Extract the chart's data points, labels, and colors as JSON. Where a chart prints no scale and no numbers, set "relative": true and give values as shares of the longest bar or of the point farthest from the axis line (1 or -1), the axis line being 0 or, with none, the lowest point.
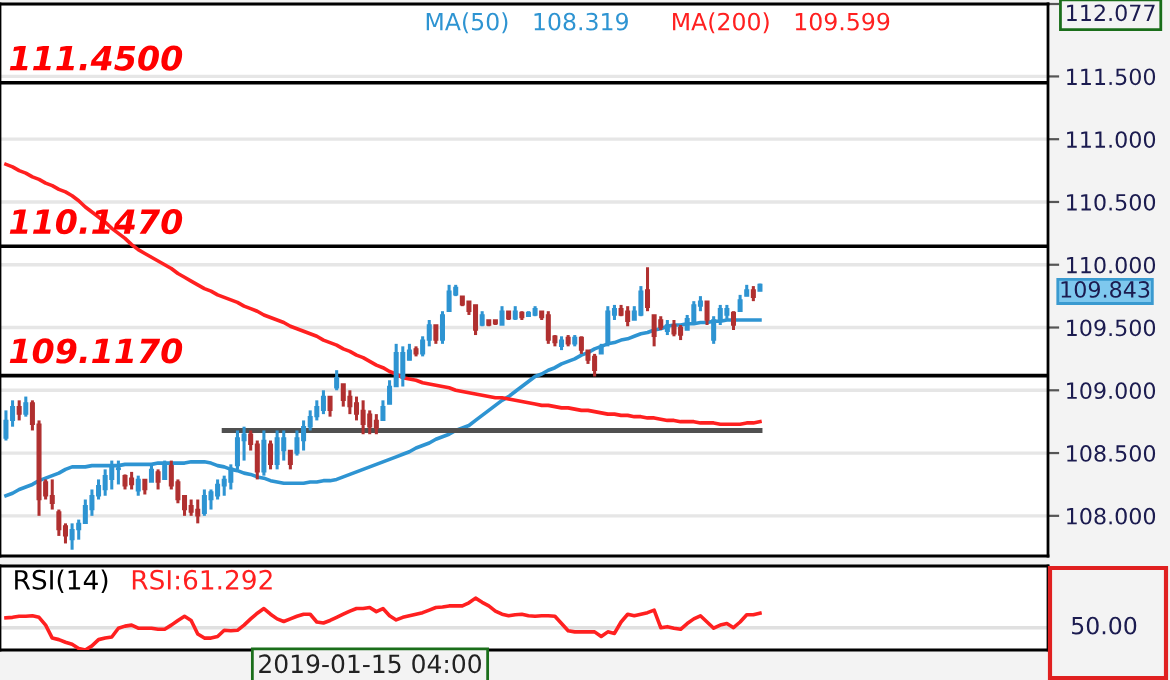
{
  "chart_data": [
    {
      "type": "candlestick",
      "categories": [
        null,
        null,
        null,
        null,
        null,
        null,
        null,
        null,
        null,
        null,
        null,
        null,
        null,
        null,
        null,
        null,
        null,
        null,
        null,
        null,
        null,
        null,
        null,
        null,
        null,
        null,
        null,
        null,
        null,
        null,
        null,
        null,
        null,
        null,
        null,
        null,
        null,
        null,
        null,
        null,
        null,
        null,
        null,
        null,
        null,
        null,
        null,
        null,
        null,
        null,
        null,
        null,
        null,
        null,
        null,
        null,
        null,
        null,
        null,
        null,
        null,
        null,
        null,
        null,
        null,
        null,
        null,
        null,
        null,
        null,
        null,
        null,
        null,
        null,
        null,
        null,
        null,
        null,
        null,
        null,
        null,
        null,
        null,
        null,
        null,
        null,
        null,
        null,
        null,
        null,
        null,
        null,
        null,
        null,
        null,
        null,
        null,
        null,
        null,
        null,
        null,
        null,
        null,
        null,
        null,
        null,
        null,
        null,
        null,
        null,
        null,
        null,
        null,
        null,
        null
      ],
      "colors": [
        "#2e94d2",
        "#2e94d2",
        "#b03030",
        "#2e94d2",
        "#b03030",
        "#b03030",
        "#b03030",
        "#b03030",
        "#b03030",
        "#b03030",
        "#2e94d2",
        "#2e94d2",
        "#2e94d2",
        "#2e94d2",
        "#2e94d2",
        "#2e94d2",
        "#2e94d2",
        "#2e94d2",
        "#b03030",
        "#b03030",
        "#2e94d2",
        "#b03030",
        "#2e94d2",
        "#b03030",
        "#2e94d2",
        "#b03030",
        "#b03030",
        "#b03030",
        "#b03030",
        "#b03030",
        "#2e94d2",
        "#2e94d2",
        "#2e94d2",
        "#2e94d2",
        "#2e94d2",
        "#2e94d2",
        "#2e94d2",
        "#b03030",
        "#b03030",
        "#2e94d2",
        "#b03030",
        "#2e94d2",
        "#2e94d2",
        "#b03030",
        "#2e94d2",
        "#2e94d2",
        "#2e94d2",
        "#2e94d2",
        "#2e94d2",
        "#b03030",
        "#2e94d2",
        "#b03030",
        "#b03030",
        "#b03030",
        "#b03030",
        "#b03030",
        "#b03030",
        "#2e94d2",
        "#2e94d2",
        "#2e94d2",
        "#2e94d2",
        "#2e94d2",
        "#b03030",
        "#2e94d2",
        "#2e94d2",
        "#b03030",
        "#2e94d2",
        "#2e94d2",
        "#2e94d2",
        "#b03030",
        "#b03030",
        "#b03030",
        "#2e94d2",
        "#b03030",
        "#b03030",
        "#2e94d2",
        "#b03030",
        "#2e94d2",
        "#b03030",
        "#2e94d2",
        "#2e94d2",
        "#b03030",
        "#b03030",
        "#b03030",
        "#2e94d2",
        "#b03030",
        "#2e94d2",
        "#b03030",
        "#b03030",
        "#b03030",
        "#2e94d2",
        "#2e94d2",
        "#2e94d2",
        "#b03030",
        "#b03030",
        "#2e94d2",
        "#2e94d2",
        "#b03030",
        "#b03030",
        "#b03030",
        "#2e94d2",
        "#b03030",
        "#b03030",
        "#2e94d2",
        "#2e94d2",
        "#2e94d2",
        "#b03030",
        "#2e94d2",
        "#2e94d2",
        "#2e94d2",
        "#b03030",
        "#2e94d2",
        "#2e94d2",
        "#b03030",
        "#2e94d2"
      ],
      "ohlc": [
        [
          108.62,
          108.84,
          108.6,
          108.76
        ],
        [
          108.76,
          108.92,
          108.71,
          108.87
        ],
        [
          108.87,
          108.92,
          108.76,
          108.81
        ],
        [
          108.81,
          108.95,
          108.79,
          108.9
        ],
        [
          108.9,
          108.92,
          108.68,
          108.73
        ],
        [
          108.73,
          108.76,
          108.0,
          108.13
        ],
        [
          108.27,
          108.29,
          108.13,
          108.16
        ],
        [
          108.16,
          108.29,
          108.05,
          108.1
        ],
        [
          108.03,
          108.05,
          107.84,
          107.89
        ],
        [
          107.92,
          107.94,
          107.78,
          107.84
        ],
        [
          107.81,
          107.94,
          107.73,
          107.89
        ],
        [
          107.89,
          107.97,
          107.81,
          107.94
        ],
        [
          107.94,
          108.13,
          107.94,
          108.08
        ],
        [
          108.05,
          108.21,
          108.0,
          108.16
        ],
        [
          108.16,
          108.29,
          108.13,
          108.24
        ],
        [
          108.21,
          108.37,
          108.16,
          108.32
        ],
        [
          108.29,
          108.44,
          108.21,
          108.4
        ],
        [
          108.37,
          108.44,
          108.25,
          108.38
        ],
        [
          108.32,
          108.33,
          108.21,
          108.24
        ],
        [
          108.3,
          108.35,
          108.21,
          108.25
        ],
        [
          108.2,
          108.32,
          108.16,
          108.29
        ],
        [
          108.29,
          108.29,
          108.17,
          108.21
        ],
        [
          108.27,
          108.41,
          108.27,
          108.37
        ],
        [
          108.35,
          108.37,
          108.21,
          108.27
        ],
        [
          108.29,
          108.44,
          108.29,
          108.4
        ],
        [
          108.4,
          108.44,
          108.21,
          108.24
        ],
        [
          108.27,
          108.29,
          108.1,
          108.13
        ],
        [
          108.16,
          108.16,
          108.0,
          108.05
        ],
        [
          108.08,
          108.13,
          108.0,
          108.03
        ],
        [
          108.05,
          108.13,
          107.94,
          108.0
        ],
        [
          108.02,
          108.21,
          108.0,
          108.16
        ],
        [
          108.13,
          108.21,
          108.05,
          108.19
        ],
        [
          108.16,
          108.29,
          108.13,
          108.25
        ],
        [
          108.24,
          108.32,
          108.16,
          108.29
        ],
        [
          108.27,
          108.41,
          108.21,
          108.38
        ],
        [
          108.4,
          108.68,
          108.37,
          108.62
        ],
        [
          108.6,
          108.71,
          108.44,
          108.65
        ],
        [
          108.65,
          108.68,
          108.52,
          108.57
        ],
        [
          108.57,
          108.6,
          108.29,
          108.35
        ],
        [
          108.35,
          108.68,
          108.32,
          108.6
        ],
        [
          108.57,
          108.6,
          108.37,
          108.41
        ],
        [
          108.41,
          108.68,
          108.37,
          108.62
        ],
        [
          108.52,
          108.68,
          108.44,
          108.62
        ],
        [
          108.52,
          108.52,
          108.37,
          108.41
        ],
        [
          108.5,
          108.68,
          108.48,
          108.62
        ],
        [
          108.6,
          108.76,
          108.52,
          108.71
        ],
        [
          108.71,
          108.84,
          108.68,
          108.79
        ],
        [
          108.79,
          108.92,
          108.76,
          108.87
        ],
        [
          108.84,
          109.0,
          108.81,
          108.95
        ],
        [
          108.95,
          108.95,
          108.79,
          108.84
        ],
        [
          109.02,
          109.16,
          109.0,
          109.1
        ],
        [
          109.05,
          109.05,
          108.87,
          108.92
        ],
        [
          108.95,
          109.0,
          108.81,
          108.87
        ],
        [
          108.9,
          108.95,
          108.76,
          108.81
        ],
        [
          108.84,
          108.92,
          108.65,
          108.73
        ],
        [
          108.81,
          108.84,
          108.65,
          108.71
        ],
        [
          108.76,
          108.81,
          108.65,
          108.7
        ],
        [
          108.76,
          108.92,
          108.76,
          108.87
        ],
        [
          108.89,
          109.08,
          108.89,
          109.03
        ],
        [
          109.03,
          109.37,
          109.03,
          109.3
        ],
        [
          109.1,
          109.35,
          109.03,
          109.3
        ],
        [
          109.24,
          109.37,
          109.24,
          109.32
        ],
        [
          109.33,
          109.35,
          109.27,
          109.29
        ],
        [
          109.29,
          109.43,
          109.27,
          109.4
        ],
        [
          109.4,
          109.56,
          109.35,
          109.52
        ],
        [
          109.52,
          109.52,
          109.37,
          109.4
        ],
        [
          109.4,
          109.63,
          109.37,
          109.6
        ],
        [
          109.63,
          109.84,
          109.63,
          109.79
        ],
        [
          109.76,
          109.84,
          109.75,
          109.82
        ],
        [
          109.75,
          109.75,
          109.67,
          109.68
        ],
        [
          109.71,
          109.71,
          109.6,
          109.63
        ],
        [
          109.68,
          109.68,
          109.44,
          109.48
        ],
        [
          109.52,
          109.63,
          109.51,
          109.6
        ],
        [
          109.56,
          109.56,
          109.51,
          109.52
        ],
        [
          109.56,
          109.56,
          109.52,
          109.53
        ],
        [
          109.52,
          109.67,
          109.52,
          109.63
        ],
        [
          109.63,
          109.63,
          109.56,
          109.57
        ],
        [
          109.57,
          109.67,
          109.56,
          109.63
        ],
        [
          109.62,
          109.63,
          109.56,
          109.58
        ],
        [
          109.59,
          109.63,
          109.59,
          109.62
        ],
        [
          109.6,
          109.67,
          109.59,
          109.65
        ],
        [
          109.63,
          109.63,
          109.56,
          109.58
        ],
        [
          109.6,
          109.63,
          109.37,
          109.4
        ],
        [
          109.43,
          109.44,
          109.35,
          109.38
        ],
        [
          109.35,
          109.43,
          109.32,
          109.4
        ],
        [
          109.42,
          109.44,
          109.35,
          109.37
        ],
        [
          109.37,
          109.44,
          109.35,
          109.42
        ],
        [
          109.42,
          109.43,
          109.29,
          109.32
        ],
        [
          109.32,
          109.32,
          109.21,
          109.24
        ],
        [
          109.27,
          109.29,
          109.11,
          109.16
        ],
        [
          109.29,
          109.37,
          109.29,
          109.35
        ],
        [
          109.37,
          109.67,
          109.35,
          109.63
        ],
        [
          109.6,
          109.68,
          109.56,
          109.65
        ],
        [
          109.65,
          109.68,
          109.59,
          109.6
        ],
        [
          109.63,
          109.67,
          109.51,
          109.55
        ],
        [
          109.56,
          109.67,
          109.56,
          109.63
        ],
        [
          109.6,
          109.83,
          109.59,
          109.79
        ],
        [
          109.8,
          109.98,
          109.63,
          109.66
        ],
        [
          109.6,
          109.6,
          109.35,
          109.43
        ],
        [
          109.56,
          109.59,
          109.48,
          109.5
        ],
        [
          109.47,
          109.56,
          109.44,
          109.52
        ],
        [
          109.52,
          109.56,
          109.43,
          109.45
        ],
        [
          109.5,
          109.52,
          109.4,
          109.44
        ],
        [
          109.48,
          109.6,
          109.48,
          109.57
        ],
        [
          109.55,
          109.71,
          109.52,
          109.68
        ],
        [
          109.67,
          109.75,
          109.63,
          109.71
        ],
        [
          109.71,
          109.71,
          109.52,
          109.56
        ],
        [
          109.4,
          109.59,
          109.37,
          109.56
        ],
        [
          109.55,
          109.68,
          109.52,
          109.65
        ],
        [
          109.6,
          109.68,
          109.56,
          109.65
        ],
        [
          109.62,
          109.63,
          109.48,
          109.52
        ],
        [
          109.63,
          109.76,
          109.63,
          109.72
        ],
        [
          109.75,
          109.84,
          109.75,
          109.8
        ],
        [
          109.8,
          109.83,
          109.71,
          109.74
        ],
        [
          109.79,
          109.85,
          109.79,
          109.843
        ]
      ],
      "series": [
        {
          "name": "MA(50)   108.319",
          "type": "line",
          "color": "#2e94d2",
          "values": [
            108.16,
            108.18,
            108.21,
            108.23,
            108.25,
            108.28,
            108.3,
            108.32,
            108.34,
            108.37,
            108.39,
            108.39,
            108.39,
            108.4,
            108.4,
            108.4,
            108.4,
            108.4,
            108.41,
            108.41,
            108.41,
            108.41,
            108.41,
            108.42,
            108.42,
            108.42,
            108.42,
            108.42,
            108.43,
            108.43,
            108.43,
            108.42,
            108.4,
            108.39,
            108.37,
            108.36,
            108.34,
            108.33,
            108.31,
            108.3,
            108.28,
            108.27,
            108.26,
            108.26,
            108.26,
            108.26,
            108.27,
            108.27,
            108.28,
            108.28,
            108.29,
            108.31,
            108.33,
            108.35,
            108.37,
            108.39,
            108.41,
            108.43,
            108.45,
            108.47,
            108.49,
            108.51,
            108.54,
            108.56,
            108.58,
            108.61,
            108.63,
            108.65,
            108.68,
            108.7,
            108.72,
            108.76,
            108.8,
            108.84,
            108.88,
            108.92,
            108.95,
            108.99,
            109.03,
            109.07,
            109.11,
            109.13,
            109.16,
            109.18,
            109.21,
            109.23,
            109.25,
            109.28,
            109.3,
            109.33,
            109.35,
            109.37,
            109.38,
            109.4,
            109.41,
            109.43,
            109.45,
            109.46,
            109.48,
            109.49,
            109.51,
            109.52,
            109.52,
            109.53,
            109.53,
            109.54,
            109.54,
            109.55,
            109.55,
            109.56,
            109.56,
            109.56,
            109.56,
            109.56,
            109.56
          ]
        },
        {
          "name": "MA(200)   109.599",
          "type": "line",
          "color": "#ff2020",
          "values": [
            110.8,
            110.78,
            110.75,
            110.73,
            110.7,
            110.68,
            110.65,
            110.63,
            110.6,
            110.58,
            110.55,
            110.51,
            110.46,
            110.42,
            110.38,
            110.34,
            110.29,
            110.25,
            110.21,
            110.16,
            110.12,
            110.09,
            110.06,
            110.03,
            110.0,
            109.97,
            109.93,
            109.9,
            109.87,
            109.84,
            109.81,
            109.79,
            109.76,
            109.74,
            109.72,
            109.7,
            109.67,
            109.65,
            109.63,
            109.6,
            109.58,
            109.56,
            109.54,
            109.51,
            109.49,
            109.47,
            109.45,
            109.43,
            109.4,
            109.38,
            109.36,
            109.33,
            109.31,
            109.28,
            109.26,
            109.23,
            109.2,
            109.18,
            109.15,
            109.13,
            109.1,
            109.09,
            109.08,
            109.06,
            109.05,
            109.04,
            109.03,
            109.02,
            109.0,
            108.99,
            108.98,
            108.97,
            108.96,
            108.95,
            108.94,
            108.94,
            108.93,
            108.92,
            108.91,
            108.9,
            108.89,
            108.88,
            108.88,
            108.87,
            108.86,
            108.86,
            108.85,
            108.84,
            108.84,
            108.83,
            108.82,
            108.81,
            108.81,
            108.8,
            108.8,
            108.79,
            108.79,
            108.78,
            108.78,
            108.77,
            108.76,
            108.76,
            108.75,
            108.75,
            108.75,
            108.74,
            108.74,
            108.74,
            108.73,
            108.73,
            108.73,
            108.73,
            108.74,
            108.74,
            108.75
          ]
        },
        {
          "type": "line",
          "color": "#505050",
          "values": [
            null,
            null,
            null,
            null,
            null,
            null,
            null,
            null,
            null,
            null,
            null,
            null,
            null,
            null,
            null,
            null,
            null,
            null,
            null,
            null,
            null,
            null,
            null,
            null,
            null,
            null,
            null,
            null,
            null,
            null,
            null,
            null,
            null,
            108.68,
            108.68,
            108.68,
            108.68,
            108.68,
            108.68,
            108.68,
            108.68,
            108.68,
            108.68,
            108.68,
            108.68,
            108.68,
            108.68,
            108.68,
            108.68,
            108.68,
            108.68,
            108.68,
            108.68,
            108.68,
            108.68,
            108.68,
            108.68,
            108.68,
            108.68,
            108.68,
            108.68,
            108.68,
            108.68,
            108.68,
            108.68,
            108.68,
            108.68,
            108.68,
            108.68,
            108.68,
            108.68,
            108.68,
            108.68,
            108.68,
            108.68,
            108.68,
            108.68,
            108.68,
            108.68,
            108.68,
            108.68,
            108.68,
            108.68,
            108.68,
            108.68,
            108.68,
            108.68,
            108.68,
            108.68,
            108.68,
            108.68,
            108.68,
            108.68,
            108.68,
            108.68,
            108.68,
            108.68,
            108.68,
            108.68,
            108.68,
            108.68,
            108.68,
            108.68,
            108.68,
            108.68,
            108.68,
            108.68,
            108.68,
            108.68,
            108.68,
            108.68,
            108.68,
            108.68,
            108.68,
            108.68
          ]
        }
      ],
      "ylim": [
        107.68,
        112.077
      ],
      "yticks": [
        {
          "value": 108,
          "label": "108.000"
        },
        {
          "value": 108.5,
          "label": "108.500"
        },
        {
          "value": 109,
          "label": "109.000"
        },
        {
          "value": 109.5,
          "label": "109.500"
        },
        {
          "value": 110,
          "label": "110.000"
        },
        {
          "value": 110.5,
          "label": "110.500"
        },
        {
          "value": 111,
          "label": "111.000"
        },
        {
          "value": 111.5,
          "label": "111.500"
        },
        112.077
      ],
      "ref_lines": [
        {
          "axis": "y",
          "value": 111.45,
          "label": "111.4500",
          "color": "#000000"
        },
        {
          "axis": "y",
          "value": 110.147,
          "label": "110.1470",
          "color": "#000000"
        },
        {
          "axis": "y",
          "value": 109.117,
          "label": "109.1170",
          "color": "#000000"
        }
      ],
      "annotations": [
        "109.843"
      ],
      "grid": "y",
      "legend": "top",
      "tick_labels": "y"
    },
    {
      "type": "line",
      "title": "RSI(14)",
      "relative": true,
      "categories": [
        null,
        null,
        null,
        null,
        null,
        null,
        null,
        null,
        null,
        null,
        null,
        null,
        null,
        null,
        null,
        null,
        null,
        null,
        null,
        null,
        null,
        null,
        null,
        null,
        null,
        null,
        null,
        null,
        null,
        null,
        null,
        null,
        null,
        null,
        null,
        null,
        null,
        null,
        null,
        null,
        null,
        null,
        null,
        null,
        null,
        null,
        null,
        null,
        null,
        null,
        null,
        null,
        null,
        null,
        null,
        null,
        null,
        null,
        null,
        null,
        null,
        null,
        null,
        null,
        null,
        null,
        null,
        null,
        null,
        null,
        null,
        null,
        null,
        null,
        null,
        null,
        null,
        null,
        null,
        null,
        null,
        null,
        null,
        null,
        null,
        null,
        null,
        null,
        null,
        null,
        null,
        null,
        null,
        null,
        null,
        null,
        null,
        null,
        null,
        null,
        null,
        null,
        null,
        null,
        null,
        null,
        null,
        null,
        null,
        null,
        null,
        null,
        null,
        null,
        null
      ],
      "series": [
        {
          "name": "RSI:61.292",
          "color": "#ff2020",
          "values": [
            0.62,
            0.63,
            0.65,
            0.65,
            0.66,
            0.63,
            0.48,
            0.23,
            0.2,
            0.15,
            0.11,
            0.03,
            0,
            0.08,
            0.2,
            0.23,
            0.25,
            0.42,
            0.46,
            0.48,
            0.42,
            0.42,
            0.42,
            0.4,
            0.4,
            0.48,
            0.57,
            0.65,
            0.57,
            0.31,
            0.23,
            0.23,
            0.26,
            0.38,
            0.37,
            0.38,
            0.48,
            0.6,
            0.71,
            0.8,
            0.69,
            0.6,
            0.55,
            0.6,
            0.65,
            0.69,
            0.69,
            0.54,
            0.52,
            0.57,
            0.63,
            0.69,
            0.75,
            0.8,
            0.8,
            0.82,
            0.74,
            0.8,
            0.66,
            0.58,
            0.63,
            0.66,
            0.69,
            0.72,
            0.77,
            0.82,
            0.83,
            0.85,
            0.85,
            0.85,
            0.91,
            1,
            0.92,
            0.85,
            0.75,
            0.69,
            0.66,
            0.68,
            0.69,
            0.66,
            0.65,
            0.66,
            0.66,
            0.65,
            0.51,
            0.37,
            0.35,
            0.35,
            0.35,
            0.35,
            0.26,
            0.35,
            0.32,
            0.54,
            0.69,
            0.66,
            0.69,
            0.72,
            0.77,
            0.43,
            0.45,
            0.42,
            0.4,
            0.51,
            0.6,
            0.66,
            0.54,
            0.42,
            0.48,
            0.51,
            0.43,
            0.54,
            0.68,
            0.68,
            0.71
          ]
        }
      ],
      "ref_lines": [
        {
          "axis": "y",
          "value": 0.43,
          "color": "#e0e0e0"
        }
      ],
      "annotations": [
        "50.00",
        "2019-01-15 04:00"
      ],
      "legend": "top left",
      "tick_labels": false
    }
  ]
}
